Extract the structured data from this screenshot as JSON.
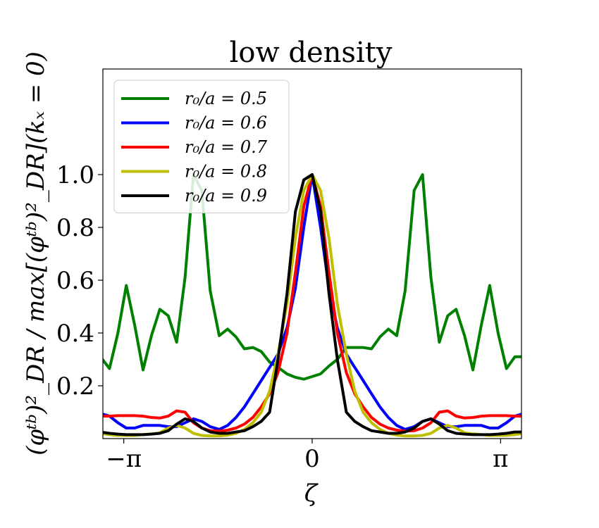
{
  "chart_data": {
    "type": "line",
    "title": "low density",
    "xlabel": "ζ",
    "ylabel": "(φᵗᵇ)²_DR / max[(φᵗᵇ)²_DR](kₓ = 0)",
    "xlim": [
      -3.49,
      3.49
    ],
    "ylim": [
      0.0,
      1.4
    ],
    "xticks": [
      {
        "value": -3.14159,
        "label": "−π"
      },
      {
        "value": 0,
        "label": "0"
      },
      {
        "value": 3.14159,
        "label": "π"
      }
    ],
    "yticks": [
      {
        "value": 0.2,
        "label": "0.2"
      },
      {
        "value": 0.4,
        "label": "0.4"
      },
      {
        "value": 0.6,
        "label": "0.6"
      },
      {
        "value": 0.8,
        "label": "0.8"
      },
      {
        "value": 1.0,
        "label": "1.0"
      }
    ],
    "legend_position": "top-left",
    "series": [
      {
        "name": "r₀/a = 0.5",
        "color": "#008000",
        "points": [
          [
            -3.53,
            0.31
          ],
          [
            -3.38,
            0.265
          ],
          [
            -3.24,
            0.4
          ],
          [
            -3.1,
            0.58
          ],
          [
            -2.96,
            0.43
          ],
          [
            -2.82,
            0.26
          ],
          [
            -2.68,
            0.39
          ],
          [
            -2.54,
            0.49
          ],
          [
            -2.4,
            0.465
          ],
          [
            -2.26,
            0.365
          ],
          [
            -2.12,
            0.61
          ],
          [
            -1.98,
            1.0
          ],
          [
            -1.84,
            0.94
          ],
          [
            -1.7,
            0.56
          ],
          [
            -1.55,
            0.39
          ],
          [
            -1.41,
            0.415
          ],
          [
            -1.27,
            0.385
          ],
          [
            -1.13,
            0.34
          ],
          [
            -0.99,
            0.345
          ],
          [
            -0.85,
            0.33
          ],
          [
            -0.71,
            0.29
          ],
          [
            -0.57,
            0.27
          ],
          [
            -0.42,
            0.245
          ],
          [
            -0.28,
            0.232
          ],
          [
            -0.14,
            0.225
          ],
          [
            0.0,
            0.235
          ],
          [
            0.14,
            0.245
          ],
          [
            0.28,
            0.275
          ],
          [
            0.42,
            0.3
          ],
          [
            0.57,
            0.345
          ],
          [
            0.71,
            0.345
          ],
          [
            0.85,
            0.345
          ],
          [
            0.99,
            0.34
          ],
          [
            1.13,
            0.385
          ],
          [
            1.27,
            0.415
          ],
          [
            1.41,
            0.39
          ],
          [
            1.55,
            0.56
          ],
          [
            1.7,
            0.94
          ],
          [
            1.84,
            1.0
          ],
          [
            1.98,
            0.61
          ],
          [
            2.12,
            0.365
          ],
          [
            2.26,
            0.465
          ],
          [
            2.4,
            0.49
          ],
          [
            2.54,
            0.39
          ],
          [
            2.68,
            0.26
          ],
          [
            2.82,
            0.43
          ],
          [
            2.96,
            0.58
          ],
          [
            3.1,
            0.4
          ],
          [
            3.24,
            0.265
          ],
          [
            3.38,
            0.31
          ],
          [
            3.53,
            0.31
          ]
        ]
      },
      {
        "name": "r₀/a = 0.6",
        "color": "#0000ff",
        "points": [
          [
            -3.53,
            0.095
          ],
          [
            -3.38,
            0.085
          ],
          [
            -3.24,
            0.06
          ],
          [
            -3.1,
            0.04
          ],
          [
            -2.96,
            0.04
          ],
          [
            -2.82,
            0.05
          ],
          [
            -2.68,
            0.05
          ],
          [
            -2.54,
            0.05
          ],
          [
            -2.4,
            0.045
          ],
          [
            -2.26,
            0.045
          ],
          [
            -2.12,
            0.06
          ],
          [
            -1.98,
            0.075
          ],
          [
            -1.84,
            0.065
          ],
          [
            -1.7,
            0.045
          ],
          [
            -1.55,
            0.035
          ],
          [
            -1.41,
            0.05
          ],
          [
            -1.27,
            0.08
          ],
          [
            -1.13,
            0.12
          ],
          [
            -0.99,
            0.17
          ],
          [
            -0.85,
            0.22
          ],
          [
            -0.71,
            0.27
          ],
          [
            -0.57,
            0.32
          ],
          [
            -0.42,
            0.42
          ],
          [
            -0.28,
            0.57
          ],
          [
            -0.14,
            0.8
          ],
          [
            0.0,
            1.0
          ],
          [
            0.14,
            0.8
          ],
          [
            0.28,
            0.57
          ],
          [
            0.42,
            0.42
          ],
          [
            0.57,
            0.32
          ],
          [
            0.71,
            0.27
          ],
          [
            0.85,
            0.22
          ],
          [
            0.99,
            0.17
          ],
          [
            1.13,
            0.12
          ],
          [
            1.27,
            0.08
          ],
          [
            1.41,
            0.05
          ],
          [
            1.55,
            0.035
          ],
          [
            1.7,
            0.045
          ],
          [
            1.84,
            0.065
          ],
          [
            1.98,
            0.075
          ],
          [
            2.12,
            0.06
          ],
          [
            2.26,
            0.045
          ],
          [
            2.4,
            0.045
          ],
          [
            2.54,
            0.05
          ],
          [
            2.68,
            0.05
          ],
          [
            2.82,
            0.05
          ],
          [
            2.96,
            0.04
          ],
          [
            3.1,
            0.04
          ],
          [
            3.24,
            0.06
          ],
          [
            3.38,
            0.085
          ],
          [
            3.53,
            0.095
          ]
        ]
      },
      {
        "name": "r₀/a = 0.7",
        "color": "#ff0000",
        "points": [
          [
            -3.53,
            0.085
          ],
          [
            -3.38,
            0.085
          ],
          [
            -3.24,
            0.087
          ],
          [
            -3.1,
            0.087
          ],
          [
            -2.96,
            0.087
          ],
          [
            -2.82,
            0.085
          ],
          [
            -2.68,
            0.08
          ],
          [
            -2.54,
            0.078
          ],
          [
            -2.4,
            0.085
          ],
          [
            -2.26,
            0.105
          ],
          [
            -2.12,
            0.1
          ],
          [
            -1.98,
            0.06
          ],
          [
            -1.84,
            0.04
          ],
          [
            -1.7,
            0.03
          ],
          [
            -1.55,
            0.028
          ],
          [
            -1.41,
            0.032
          ],
          [
            -1.27,
            0.04
          ],
          [
            -1.13,
            0.055
          ],
          [
            -0.99,
            0.08
          ],
          [
            -0.85,
            0.12
          ],
          [
            -0.71,
            0.17
          ],
          [
            -0.57,
            0.25
          ],
          [
            -0.42,
            0.4
          ],
          [
            -0.28,
            0.63
          ],
          [
            -0.14,
            0.88
          ],
          [
            0.0,
            1.0
          ],
          [
            0.14,
            0.88
          ],
          [
            0.28,
            0.63
          ],
          [
            0.42,
            0.4
          ],
          [
            0.57,
            0.25
          ],
          [
            0.71,
            0.17
          ],
          [
            0.85,
            0.12
          ],
          [
            0.99,
            0.08
          ],
          [
            1.13,
            0.055
          ],
          [
            1.27,
            0.04
          ],
          [
            1.41,
            0.032
          ],
          [
            1.55,
            0.028
          ],
          [
            1.7,
            0.03
          ],
          [
            1.84,
            0.04
          ],
          [
            1.98,
            0.06
          ],
          [
            2.12,
            0.1
          ],
          [
            2.26,
            0.105
          ],
          [
            2.4,
            0.085
          ],
          [
            2.54,
            0.078
          ],
          [
            2.68,
            0.08
          ],
          [
            2.82,
            0.085
          ],
          [
            2.96,
            0.087
          ],
          [
            3.1,
            0.087
          ],
          [
            3.24,
            0.087
          ],
          [
            3.38,
            0.085
          ],
          [
            3.53,
            0.085
          ]
        ]
      },
      {
        "name": "r₀/a = 0.8",
        "color": "#bfbf00",
        "points": [
          [
            -3.53,
            0.02
          ],
          [
            -3.38,
            0.015
          ],
          [
            -3.24,
            0.012
          ],
          [
            -3.1,
            0.012
          ],
          [
            -2.96,
            0.012
          ],
          [
            -2.82,
            0.015
          ],
          [
            -2.68,
            0.018
          ],
          [
            -2.54,
            0.022
          ],
          [
            -2.4,
            0.04
          ],
          [
            -2.26,
            0.05
          ],
          [
            -2.12,
            0.04
          ],
          [
            -1.98,
            0.02
          ],
          [
            -1.84,
            0.012
          ],
          [
            -1.7,
            0.01
          ],
          [
            -1.55,
            0.01
          ],
          [
            -1.41,
            0.013
          ],
          [
            -1.27,
            0.02
          ],
          [
            -1.13,
            0.035
          ],
          [
            -0.99,
            0.06
          ],
          [
            -0.85,
            0.1
          ],
          [
            -0.71,
            0.18
          ],
          [
            -0.57,
            0.32
          ],
          [
            -0.42,
            0.51
          ],
          [
            -0.28,
            0.76
          ],
          [
            -0.14,
            0.94
          ],
          [
            0.0,
            1.0
          ],
          [
            0.14,
            0.94
          ],
          [
            0.28,
            0.76
          ],
          [
            0.42,
            0.51
          ],
          [
            0.57,
            0.32
          ],
          [
            0.71,
            0.18
          ],
          [
            0.85,
            0.1
          ],
          [
            0.99,
            0.06
          ],
          [
            1.13,
            0.035
          ],
          [
            1.27,
            0.02
          ],
          [
            1.41,
            0.013
          ],
          [
            1.55,
            0.01
          ],
          [
            1.7,
            0.01
          ],
          [
            1.84,
            0.012
          ],
          [
            1.98,
            0.02
          ],
          [
            2.12,
            0.04
          ],
          [
            2.26,
            0.05
          ],
          [
            2.4,
            0.04
          ],
          [
            2.54,
            0.022
          ],
          [
            2.68,
            0.018
          ],
          [
            2.82,
            0.015
          ],
          [
            2.96,
            0.012
          ],
          [
            3.1,
            0.012
          ],
          [
            3.24,
            0.012
          ],
          [
            3.38,
            0.015
          ],
          [
            3.53,
            0.02
          ]
        ]
      },
      {
        "name": "r₀/a = 0.9",
        "color": "#000000",
        "points": [
          [
            -3.53,
            0.025
          ],
          [
            -3.38,
            0.02
          ],
          [
            -3.24,
            0.017
          ],
          [
            -3.1,
            0.015
          ],
          [
            -2.96,
            0.015
          ],
          [
            -2.82,
            0.015
          ],
          [
            -2.68,
            0.017
          ],
          [
            -2.54,
            0.02
          ],
          [
            -2.4,
            0.03
          ],
          [
            -2.26,
            0.055
          ],
          [
            -2.12,
            0.075
          ],
          [
            -1.98,
            0.065
          ],
          [
            -1.84,
            0.04
          ],
          [
            -1.7,
            0.025
          ],
          [
            -1.55,
            0.02
          ],
          [
            -1.41,
            0.02
          ],
          [
            -1.27,
            0.025
          ],
          [
            -1.13,
            0.03
          ],
          [
            -0.99,
            0.045
          ],
          [
            -0.85,
            0.065
          ],
          [
            -0.71,
            0.1
          ],
          [
            -0.57,
            0.3
          ],
          [
            -0.42,
            0.55
          ],
          [
            -0.28,
            0.86
          ],
          [
            -0.14,
            0.98
          ],
          [
            0.0,
            1.0
          ],
          [
            0.14,
            0.86
          ],
          [
            0.28,
            0.55
          ],
          [
            0.42,
            0.3
          ],
          [
            0.57,
            0.1
          ],
          [
            0.71,
            0.065
          ],
          [
            0.85,
            0.045
          ],
          [
            0.99,
            0.03
          ],
          [
            1.13,
            0.025
          ],
          [
            1.27,
            0.02
          ],
          [
            1.41,
            0.02
          ],
          [
            1.55,
            0.025
          ],
          [
            1.7,
            0.04
          ],
          [
            1.84,
            0.065
          ],
          [
            1.98,
            0.075
          ],
          [
            2.12,
            0.055
          ],
          [
            2.26,
            0.03
          ],
          [
            2.4,
            0.02
          ],
          [
            2.54,
            0.017
          ],
          [
            2.68,
            0.015
          ],
          [
            2.82,
            0.015
          ],
          [
            2.96,
            0.015
          ],
          [
            3.1,
            0.017
          ],
          [
            3.24,
            0.02
          ],
          [
            3.38,
            0.025
          ],
          [
            3.53,
            0.025
          ]
        ]
      }
    ]
  }
}
